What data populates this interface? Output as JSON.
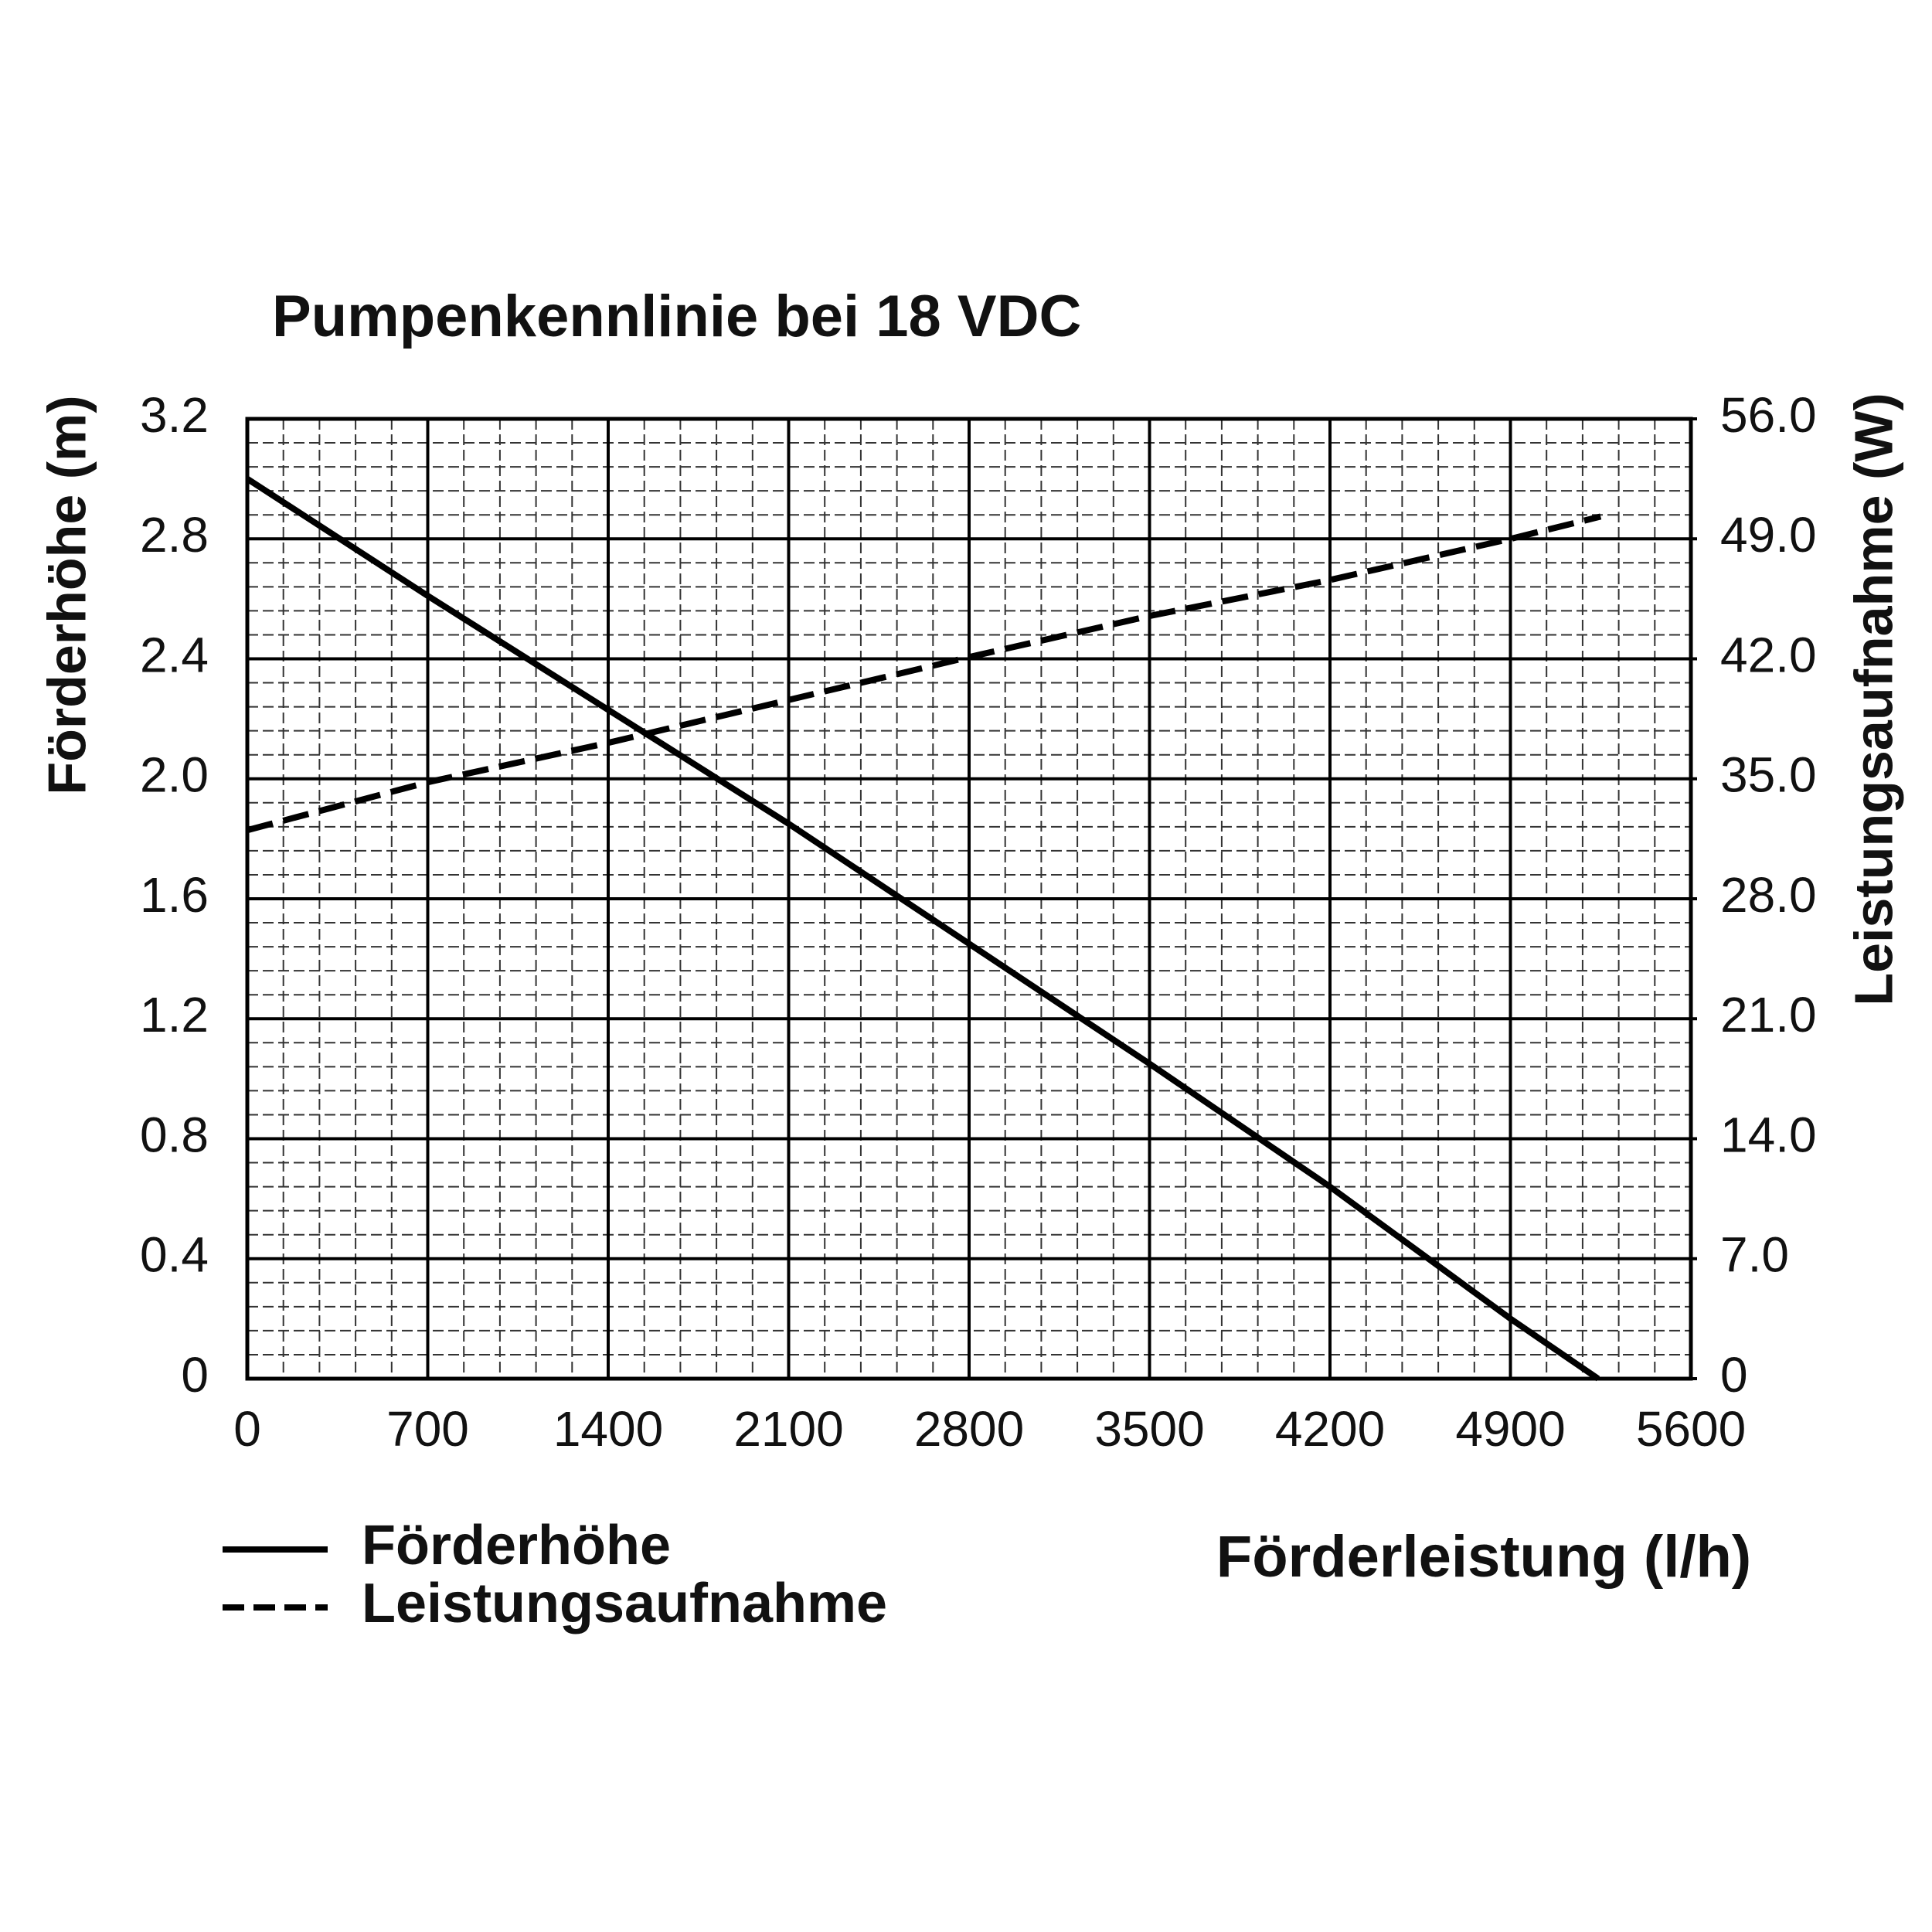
{
  "chart_data": {
    "type": "line",
    "title": "Pumpenkennlinie bei 18 VDC",
    "x_label": "Förderleistung (l/h)",
    "y_label": "Förderhöhe (m)",
    "y2_label": "Leistungsaufnahme (W)",
    "xlim": [
      0,
      5600
    ],
    "xticks": [
      0,
      700,
      1400,
      2100,
      2800,
      3500,
      4200,
      4900,
      5600
    ],
    "ylim": [
      0,
      3.2
    ],
    "yticks": [
      0,
      0.4,
      0.8,
      1.2,
      1.6,
      {
        "value": 2,
        "label": "2.0"
      },
      2.4,
      2.8,
      3.2
    ],
    "y2lim": [
      0,
      56
    ],
    "y2ticks": [
      0,
      {
        "value": 7,
        "label": "7.0"
      },
      {
        "value": 14,
        "label": "14.0"
      },
      {
        "value": 21,
        "label": "21.0"
      },
      {
        "value": 28,
        "label": "28.0"
      },
      {
        "value": 35,
        "label": "35.0"
      },
      {
        "value": 42,
        "label": "42.0"
      },
      {
        "value": 49,
        "label": "49.0"
      },
      {
        "value": 56,
        "label": "56.0"
      }
    ],
    "grid": true,
    "series": [
      {
        "name": "Förderhöhe",
        "color": "#000000",
        "style": "solid",
        "x": [
          0,
          700,
          1400,
          2100,
          2800,
          3500,
          4200,
          4900,
          5240
        ],
        "values": [
          3.0,
          2.61,
          2.23,
          1.85,
          1.45,
          1.05,
          0.64,
          0.2,
          0
        ]
      },
      {
        "name": "Leistungsaufnahme",
        "color": "#000000",
        "style": "dashed",
        "axis": "y2",
        "x": [
          0,
          700,
          1400,
          2100,
          2800,
          3500,
          4200,
          4900,
          5250
        ],
        "values": [
          32,
          34.8,
          37.1,
          39.6,
          42.1,
          44.5,
          46.6,
          49,
          50.3
        ]
      }
    ]
  }
}
